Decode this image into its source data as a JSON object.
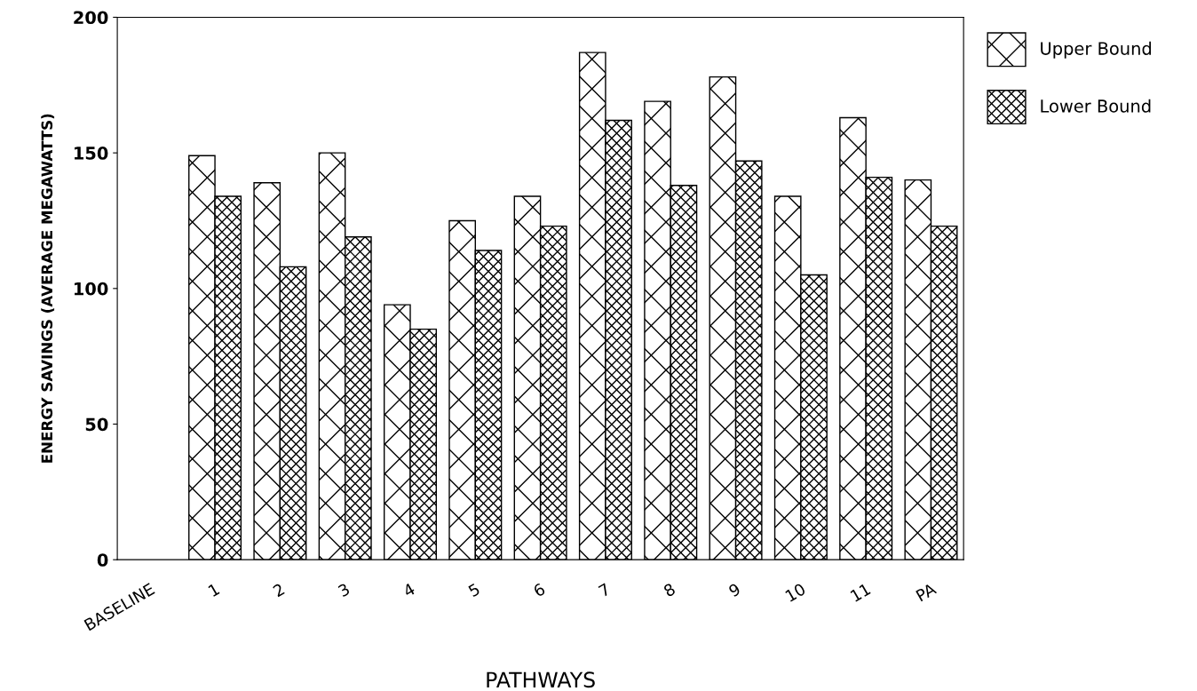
{
  "chart_data": {
    "type": "bar",
    "xlabel": "PATHWAYS",
    "ylabel": "ENERGY SAVINGS (AVERAGE MEGAWATTS)",
    "categories": [
      "BASELINE",
      "1",
      "2",
      "3",
      "4",
      "5",
      "6",
      "7",
      "8",
      "9",
      "10",
      "11",
      "PA"
    ],
    "series": [
      {
        "name": "Upper Bound",
        "color": "#000000",
        "values": [
          0,
          149,
          139,
          150,
          94,
          125,
          134,
          187,
          169,
          178,
          134,
          163,
          140
        ]
      },
      {
        "name": "Lower Bound",
        "color": "#000000",
        "values": [
          0,
          134,
          108,
          119,
          85,
          114,
          123,
          162,
          138,
          147,
          105,
          141,
          123
        ]
      }
    ],
    "ylim": [
      0,
      200
    ],
    "yticks": [
      0,
      50,
      100,
      150,
      200
    ],
    "grid": false,
    "legend": "top right"
  }
}
